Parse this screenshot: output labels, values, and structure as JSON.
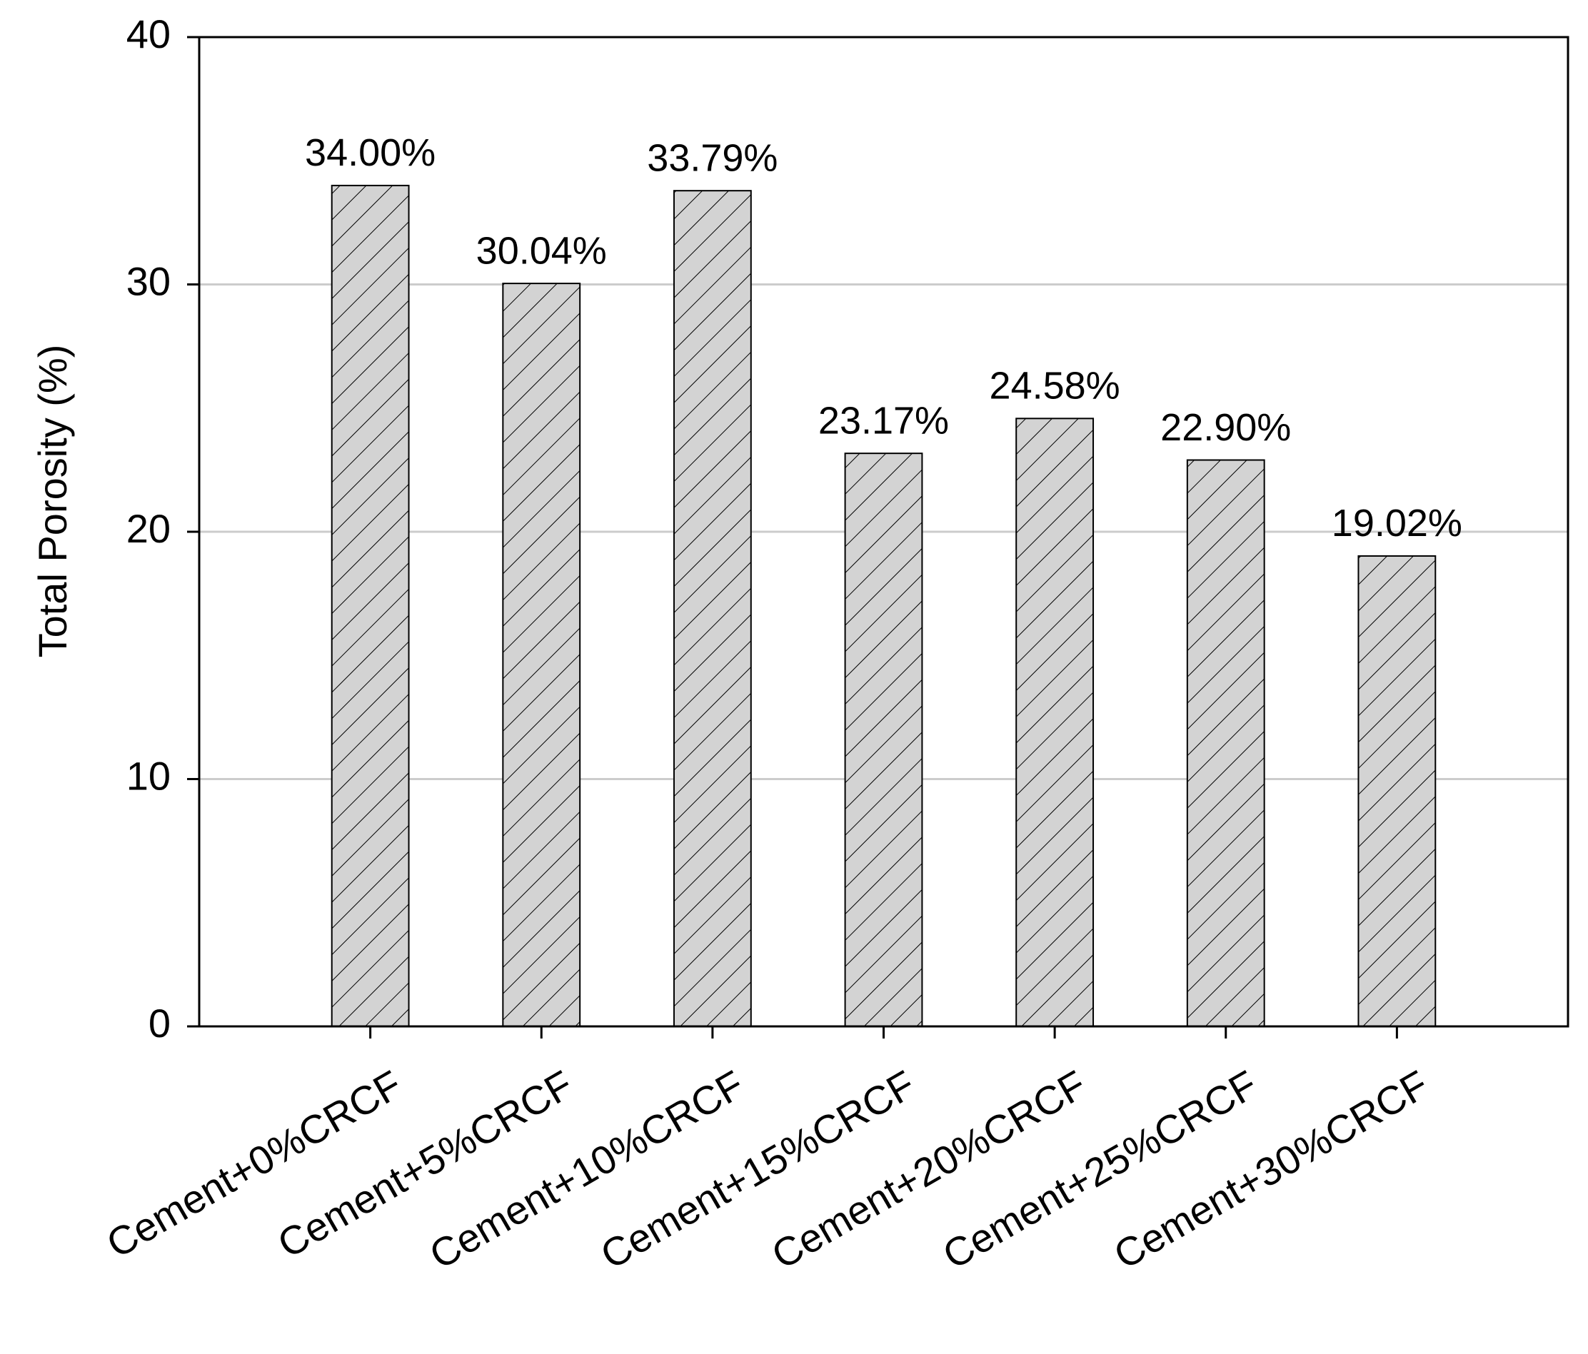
{
  "chart_data": {
    "type": "bar",
    "y_label": "Total Porosity (%)",
    "categories": [
      "Cement+0%CRCF",
      "Cement+5%CRCF",
      "Cement+10%CRCF",
      "Cement+15%CRCF",
      "Cement+20%CRCF",
      "Cement+25%CRCF",
      "Cement+30%CRCF"
    ],
    "values": [
      34.0,
      30.04,
      33.79,
      23.17,
      24.58,
      22.9,
      19.02
    ],
    "value_labels": [
      "34.00%",
      "30.04%",
      "33.79%",
      "23.17%",
      "24.58%",
      "22.90%",
      "19.02%"
    ],
    "color": "#d3d3d3",
    "ylim": [
      0,
      40
    ],
    "yticks": [
      0,
      10,
      20,
      30,
      40
    ],
    "grid": true
  }
}
